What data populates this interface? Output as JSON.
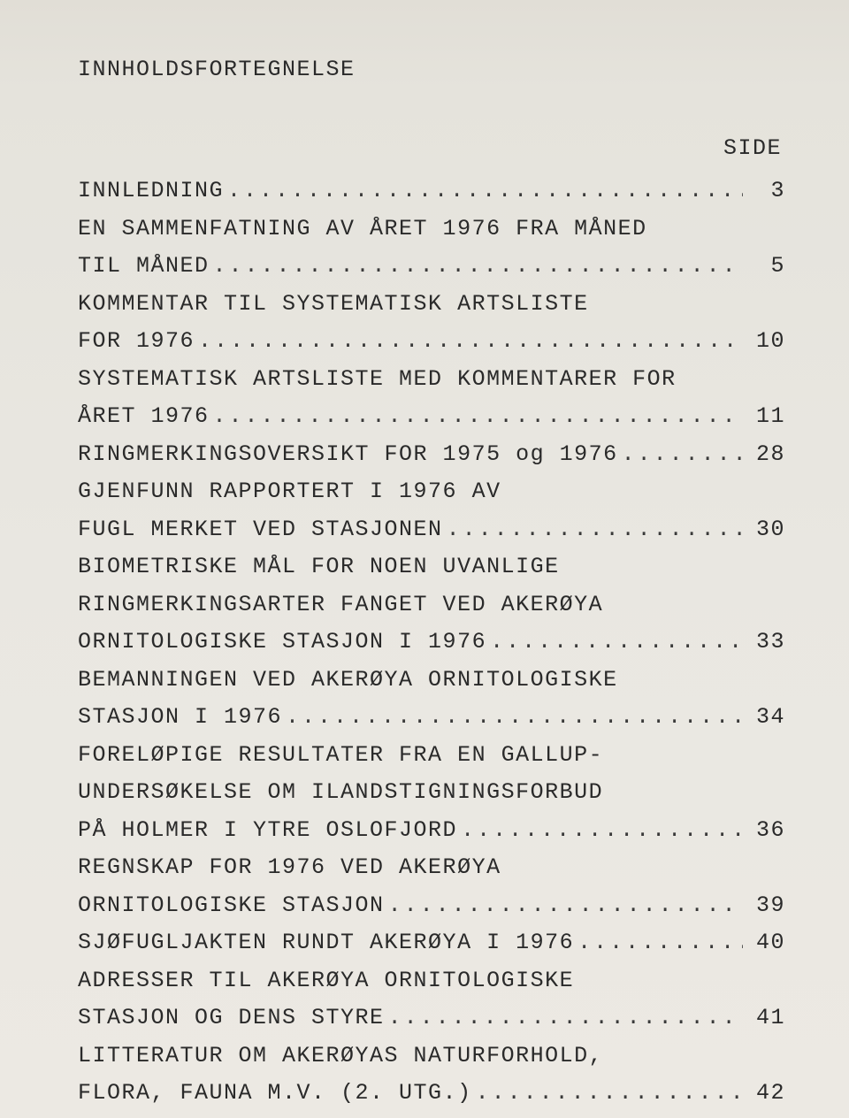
{
  "heading": "INNHOLDSFORTEGNELSE",
  "page_label": "SIDE",
  "entries": [
    {
      "lines": [
        "INNLEDNING"
      ],
      "page": "3"
    },
    {
      "lines": [
        "EN SAMMENFATNING AV ÅRET 1976 FRA MÅNED",
        "TIL MÅNED"
      ],
      "page": "5"
    },
    {
      "lines": [
        "KOMMENTAR TIL SYSTEMATISK ARTSLISTE",
        "FOR 1976"
      ],
      "page": "10"
    },
    {
      "lines": [
        "SYSTEMATISK ARTSLISTE MED KOMMENTARER FOR",
        "ÅRET 1976"
      ],
      "page": "11"
    },
    {
      "lines": [
        "RINGMERKINGSOVERSIKT FOR 1975 og 1976"
      ],
      "page": "28"
    },
    {
      "lines": [
        "GJENFUNN RAPPORTERT I 1976 AV",
        "FUGL MERKET VED STASJONEN"
      ],
      "page": "30"
    },
    {
      "lines": [
        "BIOMETRISKE MÅL FOR NOEN UVANLIGE",
        "RINGMERKINGSARTER FANGET VED AKERØYA",
        "ORNITOLOGISKE STASJON I 1976"
      ],
      "page": "33"
    },
    {
      "lines": [
        "BEMANNINGEN VED AKERØYA ORNITOLOGISKE",
        "STASJON I 1976"
      ],
      "page": "34"
    },
    {
      "lines": [
        "FORELØPIGE RESULTATER FRA EN GALLUP-",
        "UNDERSØKELSE OM ILANDSTIGNINGSFORBUD",
        "PÅ HOLMER I YTRE OSLOFJORD"
      ],
      "page": "36"
    },
    {
      "lines": [
        "REGNSKAP FOR 1976 VED AKERØYA",
        "ORNITOLOGISKE STASJON"
      ],
      "page": "39"
    },
    {
      "lines": [
        "SJØFUGLJAKTEN RUNDT AKERØYA I 1976"
      ],
      "page": "40"
    },
    {
      "lines": [
        "ADRESSER TIL AKERØYA ORNITOLOGISKE",
        "STASJON OG DENS STYRE"
      ],
      "page": "41"
    },
    {
      "lines": [
        "LITTERATUR OM AKERØYAS NATURFORHOLD,",
        "FLORA, FAUNA M.V. (2. UTG.)"
      ],
      "page": "42"
    }
  ]
}
